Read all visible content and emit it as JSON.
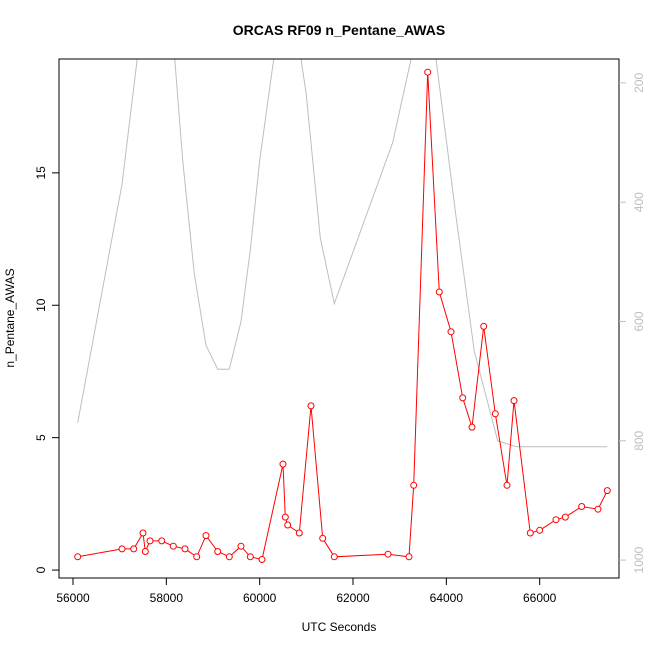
{
  "chart_data": {
    "type": "line",
    "title": "ORCAS RF09 n_Pentane_AWAS",
    "xlabel": "UTC Seconds",
    "ylabel": "n_Pentane_AWAS",
    "xlim": [
      55700,
      67700
    ],
    "ylim": [
      -0.3,
      19.3
    ],
    "x_ticks": [
      56000,
      58000,
      60000,
      62000,
      64000,
      66000
    ],
    "y_ticks": [
      0,
      5,
      10,
      15
    ],
    "y2_ticks": [
      200,
      400,
      600,
      800,
      1000
    ],
    "y2lim": [
      1030,
      160
    ],
    "grid": false,
    "colors": {
      "series": "#ff0000",
      "secondary": "#bebebe",
      "axis": "#000000",
      "right_axis": "#bebebe"
    },
    "series": [
      {
        "values": [
          [
            56100,
            0.5
          ],
          [
            57050,
            0.8
          ],
          [
            57300,
            0.8
          ],
          [
            57500,
            1.4
          ],
          [
            57550,
            0.7
          ],
          [
            57650,
            1.1
          ],
          [
            57900,
            1.1
          ],
          [
            58150,
            0.9
          ],
          [
            58400,
            0.8
          ],
          [
            58650,
            0.5
          ],
          [
            58850,
            1.3
          ],
          [
            59100,
            0.7
          ],
          [
            59350,
            0.5
          ],
          [
            59600,
            0.9
          ],
          [
            59800,
            0.5
          ],
          [
            60050,
            0.4
          ],
          [
            60500,
            4.0
          ],
          [
            60550,
            2.0
          ],
          [
            60600,
            1.7
          ],
          [
            60850,
            1.4
          ],
          [
            61100,
            6.2
          ],
          [
            61350,
            1.2
          ],
          [
            61600,
            0.5
          ],
          [
            62750,
            0.6
          ],
          [
            63200,
            0.5
          ],
          [
            63300,
            3.2
          ],
          [
            63600,
            18.8
          ],
          [
            63850,
            10.5
          ],
          [
            64100,
            9.0
          ],
          [
            64350,
            6.5
          ],
          [
            64550,
            5.4
          ],
          [
            64800,
            9.2
          ],
          [
            65050,
            5.9
          ],
          [
            65300,
            3.2
          ],
          [
            65450,
            6.4
          ],
          [
            65800,
            1.4
          ],
          [
            66000,
            1.5
          ],
          [
            66350,
            1.9
          ],
          [
            66550,
            2.0
          ],
          [
            66900,
            2.4
          ],
          [
            67250,
            2.3
          ],
          [
            67450,
            3.0
          ]
        ]
      },
      {
        "axis": "right",
        "values": [
          [
            56100,
            770
          ],
          [
            57050,
            370
          ],
          [
            57500,
            80
          ],
          [
            58100,
            80
          ],
          [
            58350,
            330
          ],
          [
            58600,
            520
          ],
          [
            58850,
            640
          ],
          [
            59100,
            680
          ],
          [
            59350,
            680
          ],
          [
            59600,
            600
          ],
          [
            59800,
            480
          ],
          [
            60000,
            330
          ],
          [
            60300,
            160
          ],
          [
            60700,
            60
          ],
          [
            61000,
            220
          ],
          [
            61300,
            460
          ],
          [
            61600,
            570
          ],
          [
            62850,
            300
          ],
          [
            63300,
            140
          ],
          [
            63600,
            50
          ],
          [
            64200,
            420
          ],
          [
            64600,
            650
          ],
          [
            65100,
            800
          ],
          [
            65500,
            810
          ],
          [
            67450,
            810
          ]
        ]
      }
    ]
  }
}
